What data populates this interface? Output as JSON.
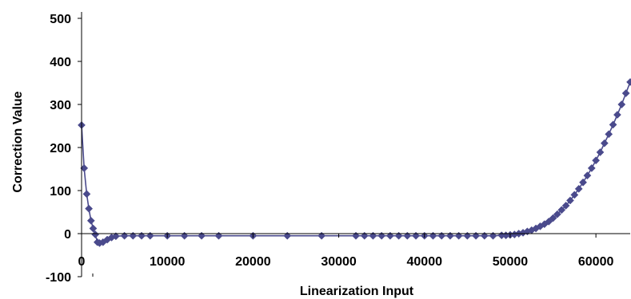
{
  "chart_data": {
    "type": "scatter",
    "title": "",
    "xlabel": "Linearization Input",
    "ylabel": "Correction Value",
    "xlim": [
      0,
      64000
    ],
    "ylim": [
      -100,
      500
    ],
    "x_ticks": [
      "0",
      "10000",
      "20000",
      "30000",
      "40000",
      "50000",
      "60000"
    ],
    "y_ticks": [
      "-100",
      "0",
      "100",
      "200",
      "300",
      "400",
      "500"
    ],
    "grid": false,
    "legend": "none",
    "colors": {
      "series": "#4A4A8C",
      "axis": "#000000"
    },
    "series": [
      {
        "marker": "diamond",
        "connected": true,
        "x": [
          0,
          300,
          600,
          850,
          1100,
          1350,
          1600,
          1850,
          2100,
          2500,
          3000,
          3500,
          4000,
          5000,
          6000,
          7000,
          8000,
          10000,
          12000,
          14000,
          16000,
          20000,
          24000,
          28000,
          32000,
          33000,
          34000,
          35000,
          36000,
          37000,
          38000,
          39000,
          40000,
          41000,
          42000,
          43000,
          44000,
          45000,
          46000,
          47000,
          48000,
          49000,
          49500,
          50000,
          50500,
          51000,
          51500,
          52000,
          52500,
          53000,
          53500,
          54000,
          54500,
          55000,
          55500,
          56000,
          56500,
          57000,
          57500,
          58000,
          58500,
          59000,
          59500,
          60000,
          60500,
          61000,
          61500,
          62000,
          62500,
          63000,
          63500,
          64000
        ],
        "y": [
          252,
          152,
          92,
          58,
          30,
          12,
          -2,
          -20,
          -22,
          -20,
          -14,
          -9,
          -6,
          -5,
          -5,
          -5,
          -5,
          -5,
          -5,
          -5,
          -5,
          -5,
          -5,
          -5,
          -5,
          -5,
          -5,
          -5,
          -5,
          -5,
          -5,
          -5,
          -5,
          -5,
          -5,
          -5,
          -5,
          -5,
          -5,
          -5,
          -5,
          -4,
          -4,
          -3,
          -2,
          0,
          2,
          5,
          8,
          12,
          17,
          22,
          28,
          36,
          45,
          55,
          65,
          77,
          90,
          104,
          119,
          135,
          152,
          170,
          189,
          210,
          231,
          253,
          276,
          300,
          326,
          352
        ]
      }
    ]
  }
}
